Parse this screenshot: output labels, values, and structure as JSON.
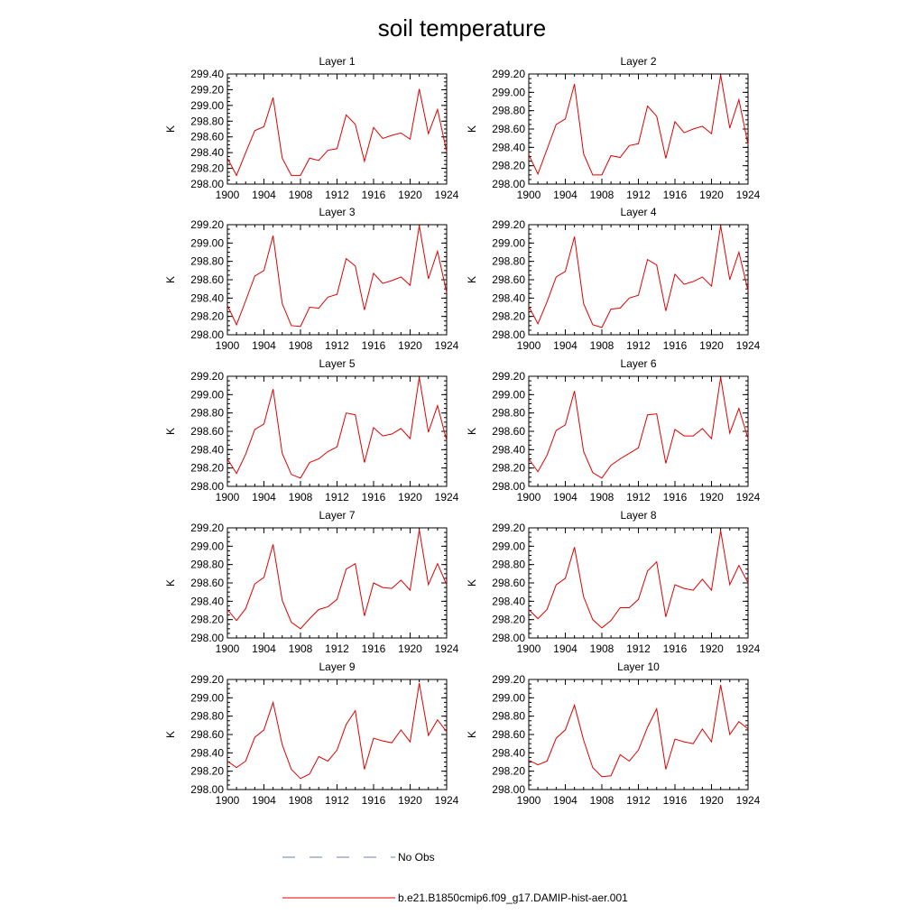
{
  "figure": {
    "title": "soil temperature"
  },
  "legend": {
    "placement": "bottom",
    "entries": [
      {
        "label": "No Obs",
        "style": "dashed",
        "color": "#6f7fb0"
      },
      {
        "label": "b.e21.B1850cmip6.f09_g17.DAMIP-hist-aer.001",
        "style": "solid",
        "color": "#e00000"
      }
    ]
  },
  "chart_data": [
    {
      "type": "line",
      "title": "Layer 1",
      "ylabel": "K",
      "x": [
        1900,
        1901,
        1902,
        1903,
        1904,
        1905,
        1906,
        1907,
        1908,
        1909,
        1910,
        1911,
        1912,
        1913,
        1914,
        1915,
        1916,
        1917,
        1918,
        1919,
        1920,
        1921,
        1922,
        1923,
        1924
      ],
      "xticks": [
        1900,
        1904,
        1908,
        1912,
        1916,
        1920,
        1924
      ],
      "xticklabels": [
        "1900",
        "1904",
        "1908",
        "1912",
        "1916",
        "1920",
        "1924"
      ],
      "ylim": [
        298.0,
        299.4
      ],
      "yticks": [
        298.0,
        298.2,
        298.4,
        298.6,
        298.8,
        299.0,
        299.2,
        299.4
      ],
      "yticklabels": [
        "298.00",
        "298.20",
        "298.40",
        "298.60",
        "298.80",
        "299.00",
        "299.20",
        "299.40"
      ],
      "series": [
        {
          "color": "#e00000",
          "values": [
            298.33,
            298.11,
            298.4,
            298.68,
            298.73,
            299.1,
            298.33,
            298.11,
            298.11,
            298.33,
            298.3,
            298.43,
            298.45,
            298.88,
            298.76,
            298.29,
            298.72,
            298.58,
            298.62,
            298.65,
            298.57,
            299.21,
            298.64,
            298.95,
            298.41
          ]
        }
      ]
    },
    {
      "type": "line",
      "title": "Layer 2",
      "ylabel": "K",
      "x": [
        1900,
        1901,
        1902,
        1903,
        1904,
        1905,
        1906,
        1907,
        1908,
        1909,
        1910,
        1911,
        1912,
        1913,
        1914,
        1915,
        1916,
        1917,
        1918,
        1919,
        1920,
        1921,
        1922,
        1923,
        1924
      ],
      "xticks": [
        1900,
        1904,
        1908,
        1912,
        1916,
        1920,
        1924
      ],
      "xticklabels": [
        "1900",
        "1904",
        "1908",
        "1912",
        "1916",
        "1920",
        "1924"
      ],
      "ylim": [
        298.0,
        299.2
      ],
      "yticks": [
        298.0,
        298.2,
        298.4,
        298.6,
        298.8,
        299.0,
        299.2
      ],
      "yticklabels": [
        "298.00",
        "298.20",
        "298.40",
        "298.60",
        "298.80",
        "299.00",
        "299.20"
      ],
      "series": [
        {
          "color": "#e00000",
          "values": [
            298.32,
            298.11,
            298.38,
            298.65,
            298.71,
            299.09,
            298.33,
            298.1,
            298.1,
            298.31,
            298.29,
            298.42,
            298.44,
            298.85,
            298.74,
            298.28,
            298.68,
            298.56,
            298.6,
            298.63,
            298.55,
            299.19,
            298.61,
            298.92,
            298.43
          ]
        }
      ]
    },
    {
      "type": "line",
      "title": "Layer 3",
      "ylabel": "K",
      "x": [
        1900,
        1901,
        1902,
        1903,
        1904,
        1905,
        1906,
        1907,
        1908,
        1909,
        1910,
        1911,
        1912,
        1913,
        1914,
        1915,
        1916,
        1917,
        1918,
        1919,
        1920,
        1921,
        1922,
        1923,
        1924
      ],
      "xticks": [
        1900,
        1904,
        1908,
        1912,
        1916,
        1920,
        1924
      ],
      "xticklabels": [
        "1900",
        "1904",
        "1908",
        "1912",
        "1916",
        "1920",
        "1924"
      ],
      "ylim": [
        298.0,
        299.2
      ],
      "yticks": [
        298.0,
        298.2,
        298.4,
        298.6,
        298.8,
        299.0,
        299.2
      ],
      "yticklabels": [
        "298.00",
        "298.20",
        "298.40",
        "298.60",
        "298.80",
        "299.00",
        "299.20"
      ],
      "series": [
        {
          "color": "#e00000",
          "values": [
            298.32,
            298.11,
            298.37,
            298.64,
            298.7,
            299.08,
            298.34,
            298.1,
            298.09,
            298.3,
            298.29,
            298.41,
            298.44,
            298.83,
            298.75,
            298.27,
            298.67,
            298.56,
            298.59,
            298.63,
            298.54,
            299.19,
            298.61,
            298.91,
            298.46
          ]
        }
      ]
    },
    {
      "type": "line",
      "title": "Layer 4",
      "ylabel": "K",
      "x": [
        1900,
        1901,
        1902,
        1903,
        1904,
        1905,
        1906,
        1907,
        1908,
        1909,
        1910,
        1911,
        1912,
        1913,
        1914,
        1915,
        1916,
        1917,
        1918,
        1919,
        1920,
        1921,
        1922,
        1923,
        1924
      ],
      "xticks": [
        1900,
        1904,
        1908,
        1912,
        1916,
        1920,
        1924
      ],
      "xticklabels": [
        "1900",
        "1904",
        "1908",
        "1912",
        "1916",
        "1920",
        "1924"
      ],
      "ylim": [
        298.0,
        299.2
      ],
      "yticks": [
        298.0,
        298.2,
        298.4,
        298.6,
        298.8,
        299.0,
        299.2
      ],
      "yticklabels": [
        "298.00",
        "298.20",
        "298.40",
        "298.60",
        "298.80",
        "299.00",
        "299.20"
      ],
      "series": [
        {
          "color": "#e00000",
          "values": [
            298.31,
            298.12,
            298.36,
            298.63,
            298.69,
            299.07,
            298.34,
            298.11,
            298.08,
            298.28,
            298.29,
            298.4,
            298.43,
            298.82,
            298.76,
            298.26,
            298.66,
            298.55,
            298.58,
            298.63,
            298.53,
            299.19,
            298.6,
            298.9,
            298.48
          ]
        }
      ]
    },
    {
      "type": "line",
      "title": "Layer 5",
      "ylabel": "K",
      "x": [
        1900,
        1901,
        1902,
        1903,
        1904,
        1905,
        1906,
        1907,
        1908,
        1909,
        1910,
        1911,
        1912,
        1913,
        1914,
        1915,
        1916,
        1917,
        1918,
        1919,
        1920,
        1921,
        1922,
        1923,
        1924
      ],
      "xticks": [
        1900,
        1904,
        1908,
        1912,
        1916,
        1920,
        1924
      ],
      "xticklabels": [
        "1900",
        "1904",
        "1908",
        "1912",
        "1916",
        "1920",
        "1924"
      ],
      "ylim": [
        298.0,
        299.2
      ],
      "yticks": [
        298.0,
        298.2,
        298.4,
        298.6,
        298.8,
        299.0,
        299.2
      ],
      "yticklabels": [
        "298.00",
        "298.20",
        "298.40",
        "298.60",
        "298.80",
        "299.00",
        "299.20"
      ],
      "series": [
        {
          "color": "#e00000",
          "values": [
            298.3,
            298.14,
            298.35,
            298.62,
            298.68,
            299.06,
            298.36,
            298.13,
            298.09,
            298.26,
            298.3,
            298.38,
            298.43,
            298.8,
            298.78,
            298.26,
            298.64,
            298.55,
            298.57,
            298.63,
            298.52,
            299.19,
            298.59,
            298.88,
            298.5
          ]
        }
      ]
    },
    {
      "type": "line",
      "title": "Layer 6",
      "ylabel": "K",
      "x": [
        1900,
        1901,
        1902,
        1903,
        1904,
        1905,
        1906,
        1907,
        1908,
        1909,
        1910,
        1911,
        1912,
        1913,
        1914,
        1915,
        1916,
        1917,
        1918,
        1919,
        1920,
        1921,
        1922,
        1923,
        1924
      ],
      "xticks": [
        1900,
        1904,
        1908,
        1912,
        1916,
        1920,
        1924
      ],
      "xticklabels": [
        "1900",
        "1904",
        "1908",
        "1912",
        "1916",
        "1920",
        "1924"
      ],
      "ylim": [
        298.0,
        299.2
      ],
      "yticks": [
        298.0,
        298.2,
        298.4,
        298.6,
        298.8,
        299.0,
        299.2
      ],
      "yticklabels": [
        "298.00",
        "298.20",
        "298.40",
        "298.60",
        "298.80",
        "299.00",
        "299.20"
      ],
      "series": [
        {
          "color": "#e00000",
          "values": [
            298.3,
            298.16,
            298.34,
            298.61,
            298.67,
            299.04,
            298.38,
            298.15,
            298.09,
            298.23,
            298.3,
            298.36,
            298.42,
            298.78,
            298.79,
            298.25,
            298.62,
            298.55,
            298.55,
            298.63,
            298.52,
            299.19,
            298.58,
            298.85,
            298.52
          ]
        }
      ]
    },
    {
      "type": "line",
      "title": "Layer 7",
      "ylabel": "K",
      "x": [
        1900,
        1901,
        1902,
        1903,
        1904,
        1905,
        1906,
        1907,
        1908,
        1909,
        1910,
        1911,
        1912,
        1913,
        1914,
        1915,
        1916,
        1917,
        1918,
        1919,
        1920,
        1921,
        1922,
        1923,
        1924
      ],
      "xticks": [
        1900,
        1904,
        1908,
        1912,
        1916,
        1920,
        1924
      ],
      "xticklabels": [
        "1900",
        "1904",
        "1908",
        "1912",
        "1916",
        "1920",
        "1924"
      ],
      "ylim": [
        298.0,
        299.2
      ],
      "yticks": [
        298.0,
        298.2,
        298.4,
        298.6,
        298.8,
        299.0,
        299.2
      ],
      "yticklabels": [
        "298.00",
        "298.20",
        "298.40",
        "298.60",
        "298.80",
        "299.00",
        "299.20"
      ],
      "series": [
        {
          "color": "#e00000",
          "values": [
            298.31,
            298.19,
            298.32,
            298.59,
            298.66,
            299.02,
            298.41,
            298.17,
            298.1,
            298.21,
            298.31,
            298.34,
            298.42,
            298.75,
            298.81,
            298.24,
            298.6,
            298.55,
            298.54,
            298.63,
            298.52,
            299.18,
            298.58,
            298.81,
            298.58
          ]
        }
      ]
    },
    {
      "type": "line",
      "title": "Layer 8",
      "ylabel": "K",
      "x": [
        1900,
        1901,
        1902,
        1903,
        1904,
        1905,
        1906,
        1907,
        1908,
        1909,
        1910,
        1911,
        1912,
        1913,
        1914,
        1915,
        1916,
        1917,
        1918,
        1919,
        1920,
        1921,
        1922,
        1923,
        1924
      ],
      "xticks": [
        1900,
        1904,
        1908,
        1912,
        1916,
        1920,
        1924
      ],
      "xticklabels": [
        "1900",
        "1904",
        "1908",
        "1912",
        "1916",
        "1920",
        "1924"
      ],
      "ylim": [
        298.0,
        299.2
      ],
      "yticks": [
        298.0,
        298.2,
        298.4,
        298.6,
        298.8,
        299.0,
        299.2
      ],
      "yticklabels": [
        "298.00",
        "298.20",
        "298.40",
        "298.60",
        "298.80",
        "299.00",
        "299.20"
      ],
      "series": [
        {
          "color": "#e00000",
          "values": [
            298.31,
            298.21,
            298.31,
            298.58,
            298.65,
            298.99,
            298.45,
            298.2,
            298.11,
            298.19,
            298.33,
            298.33,
            298.42,
            298.73,
            298.83,
            298.23,
            298.58,
            298.54,
            298.52,
            298.64,
            298.52,
            299.17,
            298.58,
            298.79,
            298.6
          ]
        }
      ]
    },
    {
      "type": "line",
      "title": "Layer 9",
      "ylabel": "K",
      "x": [
        1900,
        1901,
        1902,
        1903,
        1904,
        1905,
        1906,
        1907,
        1908,
        1909,
        1910,
        1911,
        1912,
        1913,
        1914,
        1915,
        1916,
        1917,
        1918,
        1919,
        1920,
        1921,
        1922,
        1923,
        1924
      ],
      "xticks": [
        1900,
        1904,
        1908,
        1912,
        1916,
        1920,
        1924
      ],
      "xticklabels": [
        "1900",
        "1904",
        "1908",
        "1912",
        "1916",
        "1920",
        "1924"
      ],
      "ylim": [
        298.0,
        299.2
      ],
      "yticks": [
        298.0,
        298.2,
        298.4,
        298.6,
        298.8,
        299.0,
        299.2
      ],
      "yticklabels": [
        "298.00",
        "298.20",
        "298.40",
        "298.60",
        "298.80",
        "299.00",
        "299.20"
      ],
      "series": [
        {
          "color": "#e00000",
          "values": [
            298.31,
            298.24,
            298.31,
            298.57,
            298.65,
            298.95,
            298.49,
            298.22,
            298.12,
            298.17,
            298.36,
            298.31,
            298.43,
            298.71,
            298.86,
            298.22,
            298.56,
            298.53,
            298.51,
            298.65,
            298.52,
            299.16,
            298.59,
            298.76,
            298.63
          ]
        }
      ]
    },
    {
      "type": "line",
      "title": "Layer 10",
      "ylabel": "K",
      "x": [
        1900,
        1901,
        1902,
        1903,
        1904,
        1905,
        1906,
        1907,
        1908,
        1909,
        1910,
        1911,
        1912,
        1913,
        1914,
        1915,
        1916,
        1917,
        1918,
        1919,
        1920,
        1921,
        1922,
        1923,
        1924
      ],
      "xticks": [
        1900,
        1904,
        1908,
        1912,
        1916,
        1920,
        1924
      ],
      "xticklabels": [
        "1900",
        "1904",
        "1908",
        "1912",
        "1916",
        "1920",
        "1924"
      ],
      "ylim": [
        298.0,
        299.2
      ],
      "yticks": [
        298.0,
        298.2,
        298.4,
        298.6,
        298.8,
        299.0,
        299.2
      ],
      "yticklabels": [
        "298.00",
        "298.20",
        "298.40",
        "298.60",
        "298.80",
        "299.00",
        "299.20"
      ],
      "series": [
        {
          "color": "#e00000",
          "values": [
            298.32,
            298.27,
            298.31,
            298.56,
            298.65,
            298.92,
            298.54,
            298.24,
            298.14,
            298.15,
            298.38,
            298.31,
            298.43,
            298.68,
            298.88,
            298.22,
            298.55,
            298.52,
            298.5,
            298.66,
            298.52,
            299.14,
            298.6,
            298.74,
            298.66
          ]
        }
      ]
    }
  ]
}
